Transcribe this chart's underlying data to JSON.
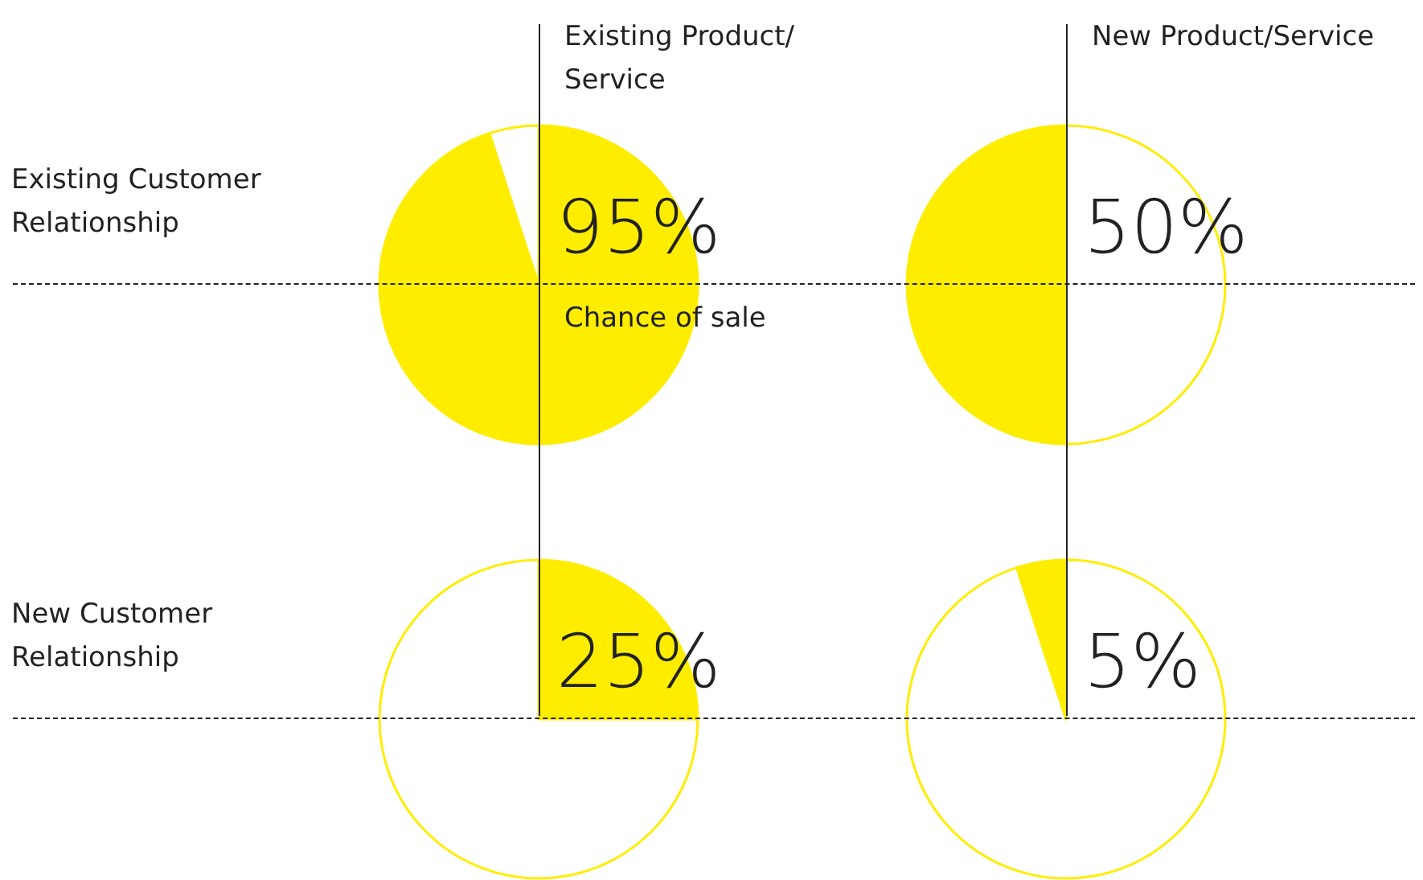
{
  "chart_data": [
    {
      "type": "pie",
      "title": "Existing Product/ Service",
      "ylabel": "Existing Customer Relationship",
      "categories": [
        null,
        null
      ],
      "values": [
        95,
        5
      ],
      "colors": [
        "#ffed00",
        "#ffffff"
      ],
      "annotations": [
        "95%",
        "Chance of sale"
      ]
    },
    {
      "type": "pie",
      "title": "New Product/Service",
      "categories": [
        null,
        null
      ],
      "values": [
        50,
        50
      ],
      "colors": [
        "#ffffff",
        "#ffed00"
      ],
      "annotations": [
        "50%"
      ]
    },
    {
      "type": "pie",
      "ylabel": "New Customer Relationship",
      "categories": [
        null,
        null
      ],
      "values": [
        25,
        75
      ],
      "colors": [
        "#ffed00",
        "#ffffff"
      ],
      "annotations": [
        "25%"
      ]
    },
    {
      "type": "pie",
      "categories": [
        null,
        null
      ],
      "values": [
        95,
        5
      ],
      "colors": [
        "#ffffff",
        "#ffed00"
      ],
      "annotations": [
        "5%"
      ]
    }
  ]
}
